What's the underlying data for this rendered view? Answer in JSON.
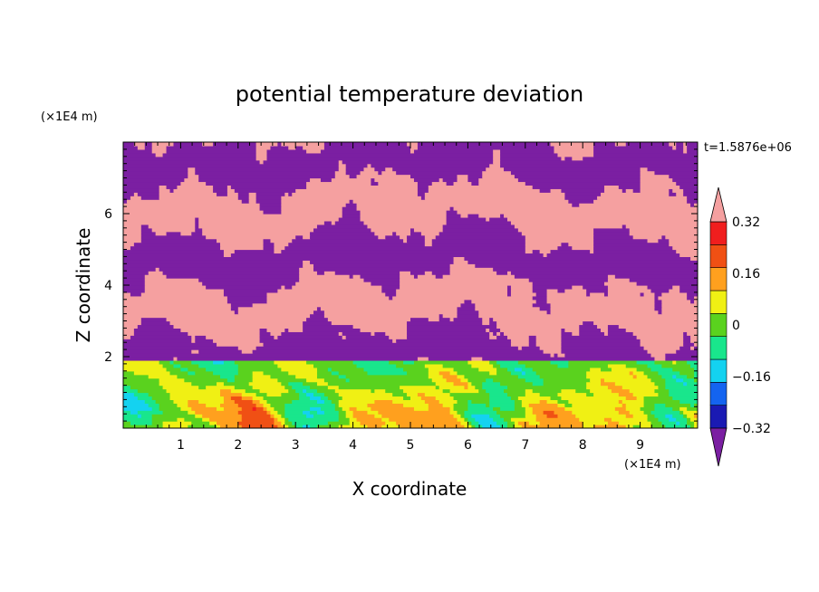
{
  "chart_data": {
    "type": "heatmap",
    "title": "potential temperature deviation",
    "time_label": "t=1.5876e+06",
    "xlabel": "X coordinate",
    "ylabel": "Z coordinate",
    "x_unit": "(×1E4 m)",
    "y_unit": "(×1E4 m)",
    "xlim": [
      0,
      10
    ],
    "ylim": [
      0,
      8
    ],
    "x_ticks": [
      1,
      2,
      3,
      4,
      5,
      6,
      7,
      8,
      9
    ],
    "y_ticks": [
      2,
      4,
      6
    ],
    "colorbar": {
      "tick_labels": [
        "0.32",
        "0.16",
        "0",
        "−0.16",
        "−0.32"
      ],
      "tick_values": [
        0.32,
        0.16,
        0,
        -0.16,
        -0.32
      ],
      "levels": [
        -0.4,
        -0.32,
        -0.24,
        -0.16,
        -0.08,
        0,
        0.08,
        0.16,
        0.24,
        0.32,
        0.4
      ],
      "colors": [
        "#7b1fa2",
        "#1a1ab3",
        "#1464f0",
        "#14d2f0",
        "#19e68c",
        "#5ad21e",
        "#f0f014",
        "#ffa01e",
        "#f05014",
        "#f01e1e",
        "#f5a0a0"
      ],
      "under_color": "#7b1fa2",
      "over_color": "#f5a0a0"
    },
    "field_description_regions": [
      {
        "z_range": [
          2,
          8
        ],
        "pattern": "alternating bands of positive (pink) and negative (purple) deviation"
      },
      {
        "z_range": [
          0,
          1.6
        ],
        "pattern": "turbulent cells with near-zero green/yellow/cyan values and blue cores"
      }
    ]
  }
}
